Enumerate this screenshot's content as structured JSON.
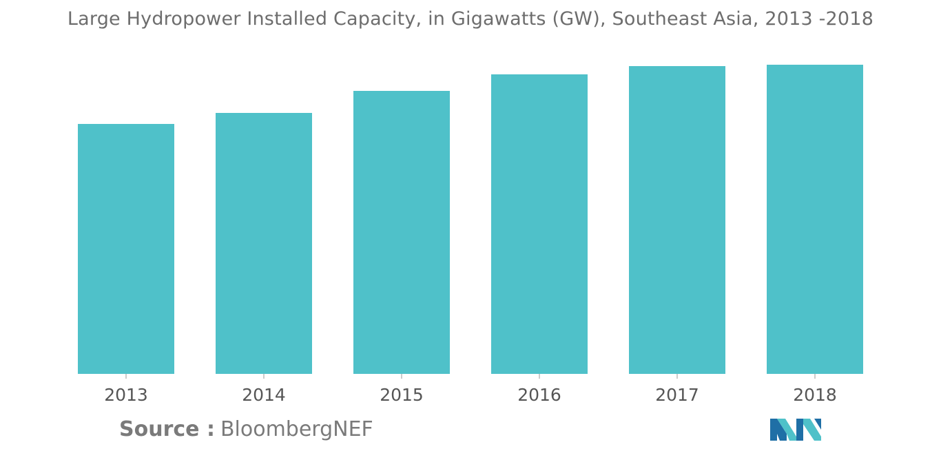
{
  "chart_data": {
    "type": "bar",
    "title": "Large Hydropower Installed Capacity, in Gigawatts (GW), Southeast Asia, 2013 -2018",
    "xlabel": "",
    "ylabel": "",
    "categories": [
      "2013",
      "2014",
      "2015",
      "2016",
      "2017",
      "2018"
    ],
    "values": [
      36.3,
      37.9,
      41.1,
      43.5,
      44.7,
      44.9
    ],
    "ylim": [
      0,
      50
    ],
    "grid": false,
    "color": "#4fc1c9"
  },
  "source": {
    "label": "Source :",
    "text": "BloombergNEF"
  },
  "colors": {
    "title": "#6d6d6d",
    "tick_label": "#555555",
    "logo_dark": "#1f6fa6",
    "logo_light": "#4fc1c9"
  }
}
